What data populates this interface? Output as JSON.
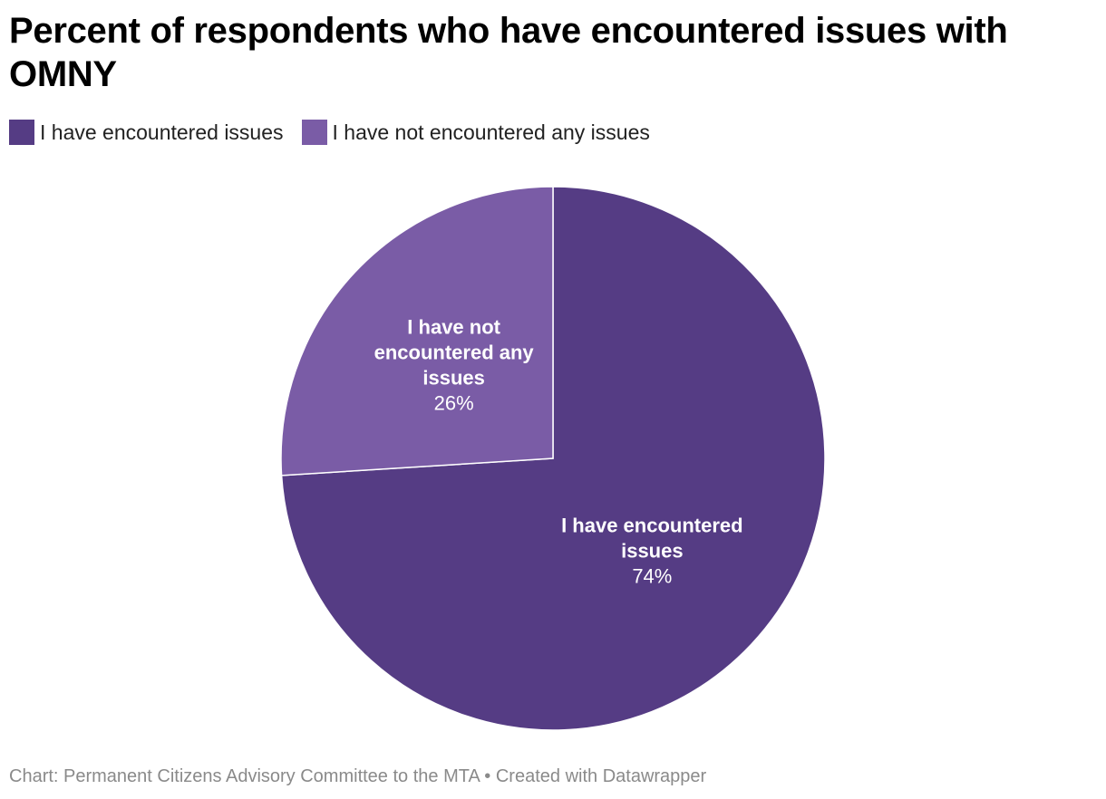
{
  "chart_data": {
    "type": "pie",
    "title": "Percent of respondents who have encountered issues with OMNY",
    "slices": [
      {
        "label": "I have encountered issues",
        "value": 74,
        "display": "74%",
        "color": "#553c84",
        "label_lines": [
          "I have encountered",
          "issues"
        ]
      },
      {
        "label": "I have not encountered any issues",
        "value": 26,
        "display": "26%",
        "color": "#7a5ca6",
        "label_lines": [
          "I have not",
          "encountered any",
          "issues"
        ]
      }
    ],
    "legend": [
      "I have encountered issues",
      "I have not encountered any issues"
    ],
    "legend_position": "top-left"
  },
  "footer": {
    "source": "Chart: Permanent Citizens Advisory Committee to the MTA",
    "separator": "•",
    "credit": "Created with Datawrapper"
  }
}
